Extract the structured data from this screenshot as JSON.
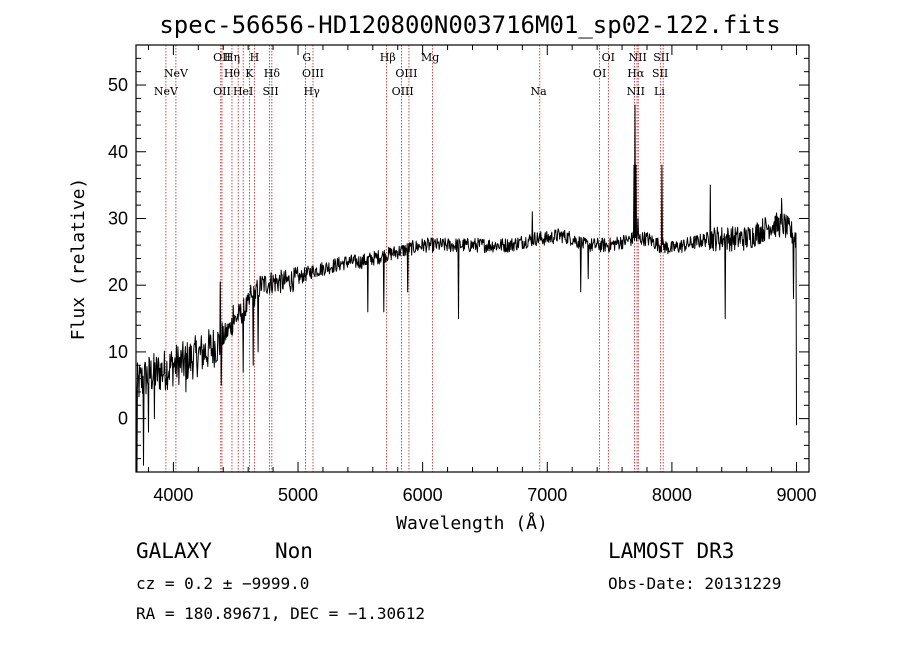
{
  "chart_data": {
    "type": "line",
    "title": "spec-56656-HD120800N003716M01_sp02-122.fits",
    "xlabel": "Wavelength (Å)",
    "ylabel": "Flux (relative)",
    "xlim": [
      3700,
      9100
    ],
    "ylim": [
      -8,
      56
    ],
    "xticks": [
      4000,
      5000,
      6000,
      7000,
      8000,
      9000
    ],
    "yticks": [
      0,
      10,
      20,
      30,
      40,
      50
    ],
    "series": [
      {
        "name": "spectrum",
        "continuum": [
          [
            3700,
            5
          ],
          [
            3800,
            6.5
          ],
          [
            3900,
            7
          ],
          [
            4000,
            8
          ],
          [
            4100,
            8.5
          ],
          [
            4200,
            9.5
          ],
          [
            4300,
            10.5
          ],
          [
            4380,
            11.5
          ],
          [
            4500,
            15
          ],
          [
            4600,
            17
          ],
          [
            4700,
            20
          ],
          [
            4800,
            20.5
          ],
          [
            4900,
            20.5
          ],
          [
            5000,
            21
          ],
          [
            5100,
            22
          ],
          [
            5200,
            22.5
          ],
          [
            5300,
            23
          ],
          [
            5400,
            23.5
          ],
          [
            5500,
            23.5
          ],
          [
            5600,
            24
          ],
          [
            5700,
            24.5
          ],
          [
            5800,
            25
          ],
          [
            5900,
            25.5
          ],
          [
            6000,
            26
          ],
          [
            6100,
            26
          ],
          [
            6200,
            26
          ],
          [
            6300,
            26
          ],
          [
            6400,
            26
          ],
          [
            6500,
            26
          ],
          [
            6600,
            26
          ],
          [
            6700,
            26
          ],
          [
            6800,
            26.5
          ],
          [
            6900,
            27
          ],
          [
            7000,
            27
          ],
          [
            7100,
            27.5
          ],
          [
            7200,
            27
          ],
          [
            7300,
            26
          ],
          [
            7400,
            26
          ],
          [
            7500,
            26
          ],
          [
            7600,
            26.5
          ],
          [
            7700,
            27
          ],
          [
            7800,
            27
          ],
          [
            7900,
            26
          ],
          [
            8000,
            25.5
          ],
          [
            8100,
            26
          ],
          [
            8200,
            26.5
          ],
          [
            8300,
            27
          ],
          [
            8400,
            27
          ],
          [
            8500,
            27
          ],
          [
            8600,
            27
          ],
          [
            8700,
            28
          ],
          [
            8800,
            29
          ],
          [
            8900,
            29
          ],
          [
            9000,
            27
          ]
        ],
        "features": [
          [
            3710,
            -8
          ],
          [
            3760,
            -7
          ],
          [
            3800,
            -2
          ],
          [
            3850,
            0
          ],
          [
            4100,
            4
          ],
          [
            4375,
            20.5
          ],
          [
            4385,
            5
          ],
          [
            4480,
            17
          ],
          [
            4560,
            7
          ],
          [
            4620,
            20
          ],
          [
            4640,
            8
          ],
          [
            4680,
            10
          ],
          [
            5560,
            16
          ],
          [
            5690,
            16
          ],
          [
            5880,
            19
          ],
          [
            6290,
            15
          ],
          [
            6880,
            31
          ],
          [
            7270,
            19
          ],
          [
            7330,
            21
          ],
          [
            7695,
            38
          ],
          [
            7705,
            47
          ],
          [
            7713,
            38
          ],
          [
            7730,
            30
          ],
          [
            7920,
            38
          ],
          [
            8310,
            35
          ],
          [
            8430,
            15
          ],
          [
            8880,
            33
          ],
          [
            8975,
            18
          ],
          [
            9000,
            -1
          ]
        ]
      }
    ],
    "spectral_lines": [
      {
        "label": "NeV",
        "x": 3940,
        "row": 3
      },
      {
        "label": "NeV",
        "x": 4020,
        "row": 2
      },
      {
        "label": "OII",
        "x": 4390,
        "row": 1
      },
      {
        "label": "OII",
        "x": 4390,
        "row": 3
      },
      {
        "label": "Hη",
        "x": 4470,
        "row": 1
      },
      {
        "label": "Hθ",
        "x": 4470,
        "row": 2
      },
      {
        "label": "HeI",
        "x": 4560,
        "row": 3
      },
      {
        "label": "H",
        "x": 4650,
        "row": 1
      },
      {
        "label": "K",
        "x": 4610,
        "row": 2
      },
      {
        "label": "Hδ",
        "x": 4790,
        "row": 2
      },
      {
        "label": "SII",
        "x": 4780,
        "row": 3
      },
      {
        "label": "G",
        "x": 5070,
        "row": 1
      },
      {
        "label": "OIII",
        "x": 5120,
        "row": 2
      },
      {
        "label": "Hγ",
        "x": 5110,
        "row": 3
      },
      {
        "label": "Hβ",
        "x": 5720,
        "row": 1
      },
      {
        "label": "OIII",
        "x": 5870,
        "row": 2
      },
      {
        "label": "OIII",
        "x": 5840,
        "row": 3
      },
      {
        "label": "Mg",
        "x": 6060,
        "row": 1
      },
      {
        "label": "Na",
        "x": 6930,
        "row": 3
      },
      {
        "label": "OI",
        "x": 7490,
        "row": 1
      },
      {
        "label": "OI",
        "x": 7420,
        "row": 2
      },
      {
        "label": "NII",
        "x": 7725,
        "row": 1
      },
      {
        "label": "Hα",
        "x": 7710,
        "row": 2
      },
      {
        "label": "NII",
        "x": 7710,
        "row": 3
      },
      {
        "label": "SII",
        "x": 7915,
        "row": 1
      },
      {
        "label": "SII",
        "x": 7905,
        "row": 2
      },
      {
        "label": "Li",
        "x": 7900,
        "row": 3
      }
    ],
    "line_positions": [
      3940,
      4020,
      4380,
      4390,
      4470,
      4520,
      4560,
      4610,
      4650,
      4770,
      4790,
      5060,
      5120,
      5710,
      5830,
      5890,
      6080,
      6940,
      7420,
      7490,
      7700,
      7720,
      7730,
      7910,
      7930
    ]
  },
  "info": {
    "class": "GALAXY",
    "subclass": "Non",
    "survey": "LAMOST DR3",
    "cz": "cz = 0.2 ± −9999.0",
    "obs_date": "Obs-Date: 20131229",
    "coords": "RA = 180.89671, DEC =  −1.30612"
  },
  "colors": {
    "spectrum": "#000000",
    "line_marker": "#b22222",
    "axis": "#000000"
  }
}
